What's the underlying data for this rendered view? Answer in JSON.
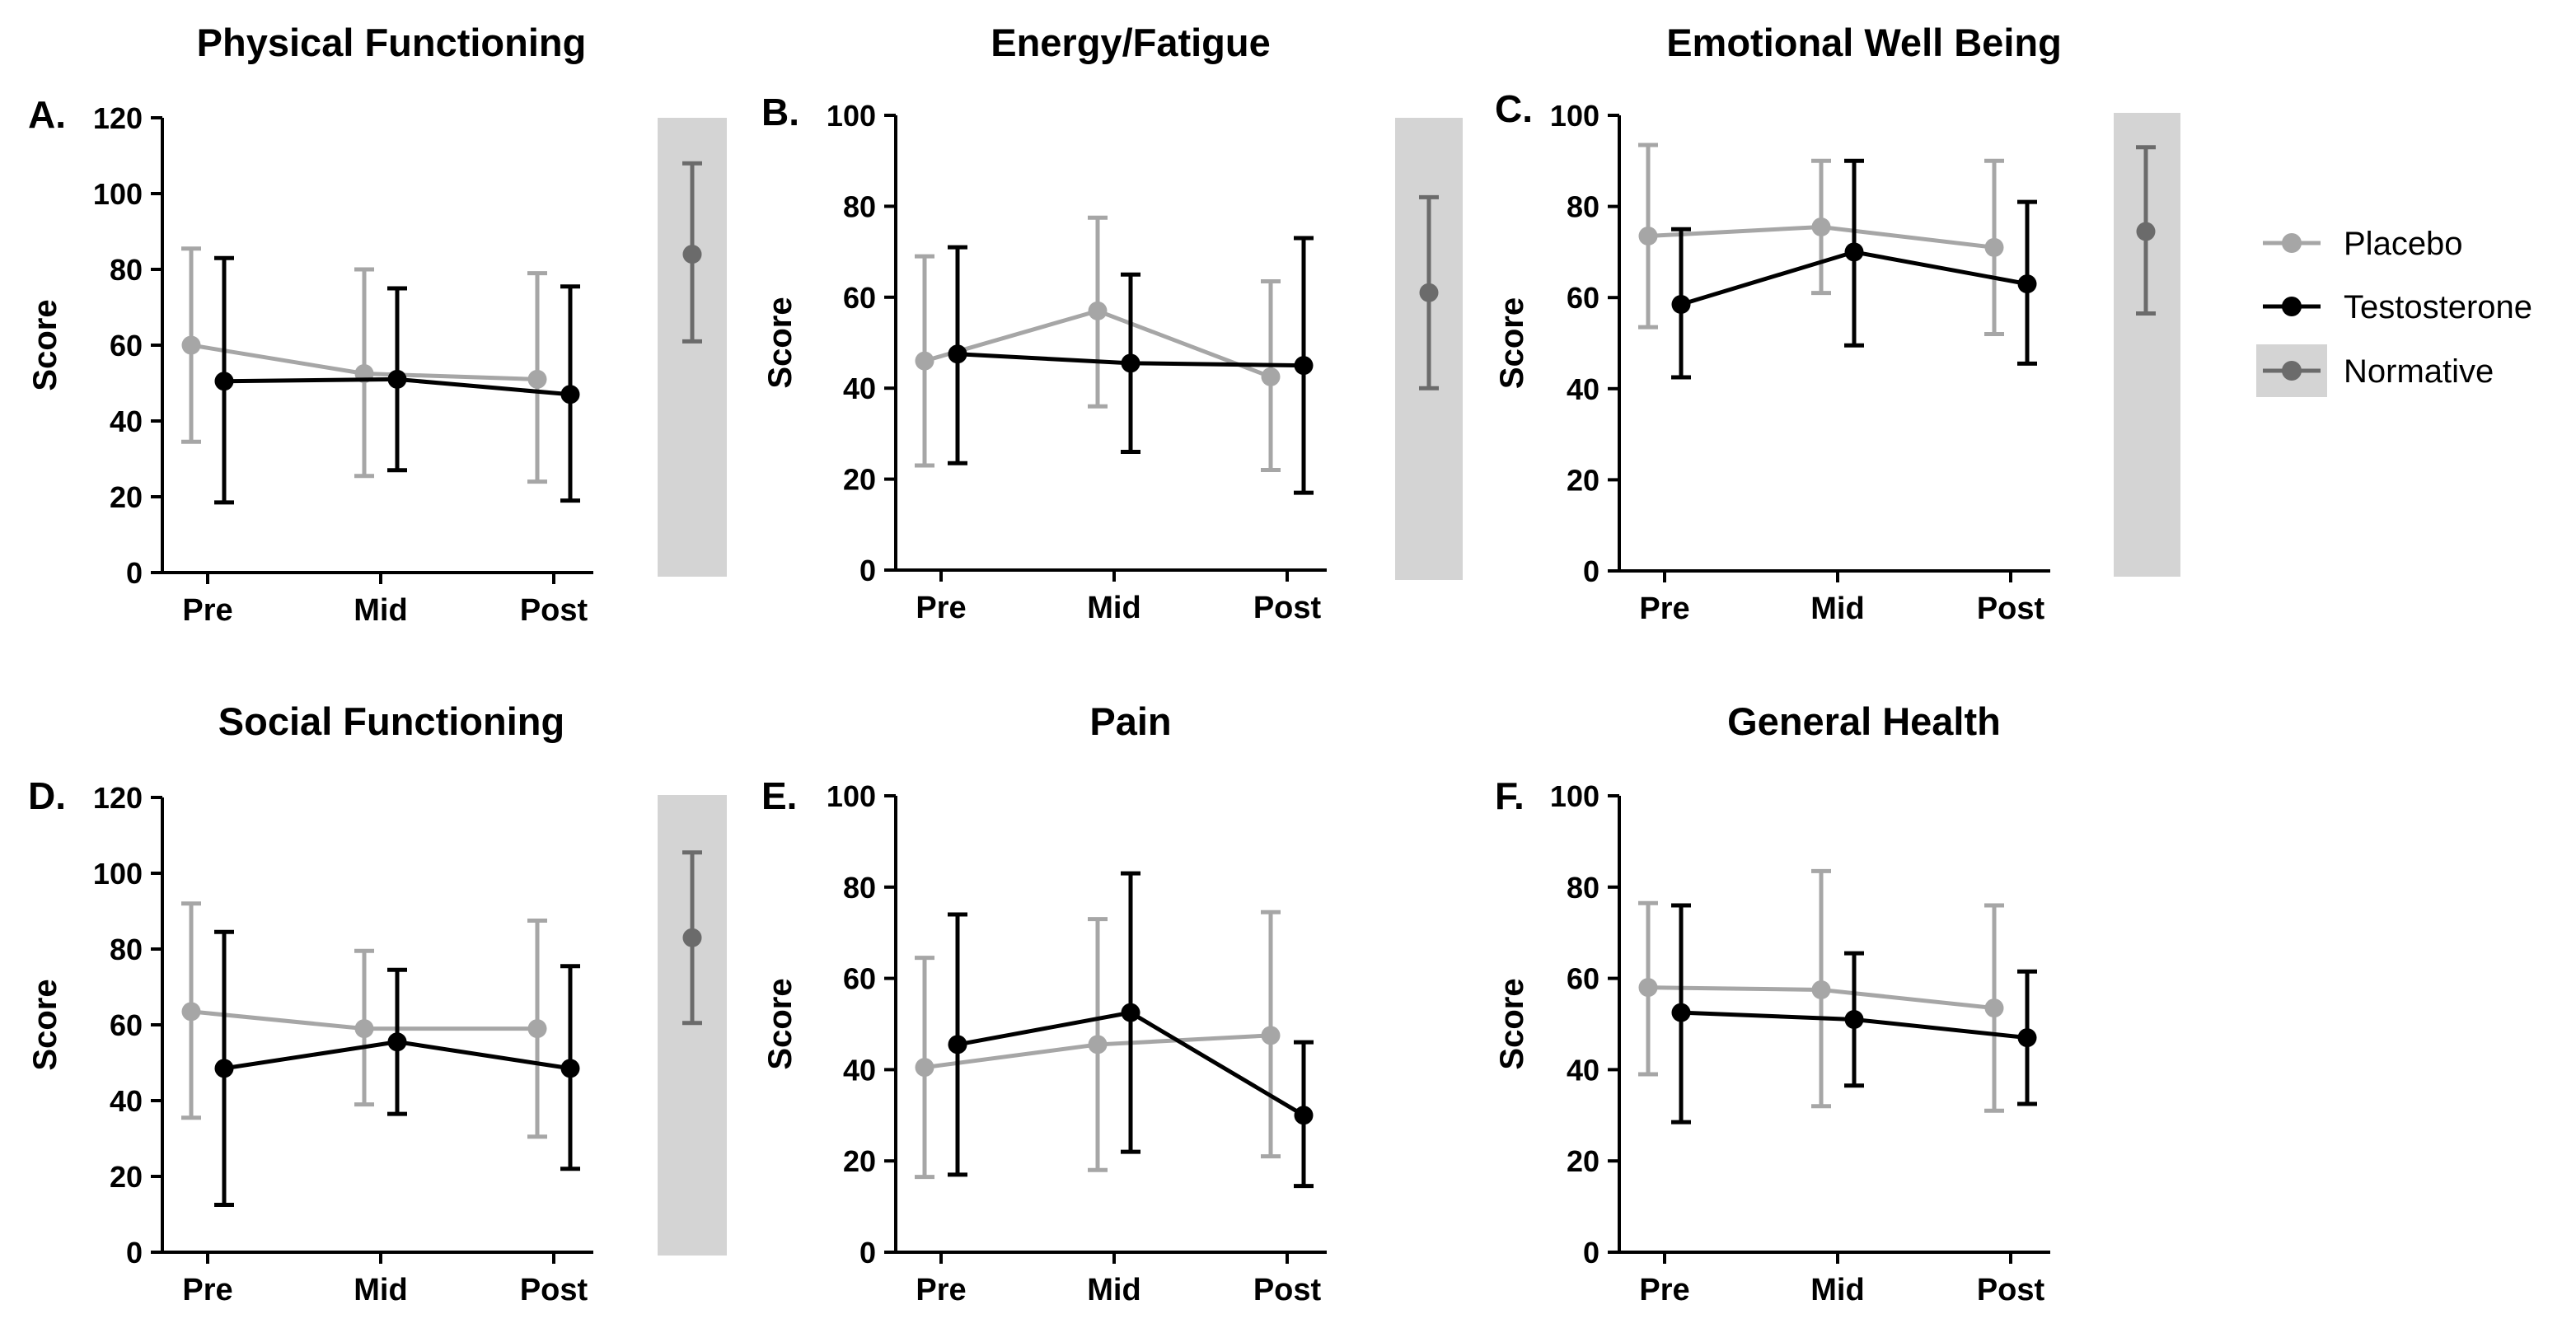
{
  "colors": {
    "placebo": "#a6a6a6",
    "testosterone": "#000000",
    "normative": "#6b6b6b",
    "normative_band": "#d4d4d4"
  },
  "legend": {
    "placement": "right",
    "entries": [
      {
        "key": "placebo",
        "label": "Placebo"
      },
      {
        "key": "testosterone",
        "label": "Testosterone"
      },
      {
        "key": "normative",
        "label": "Normative"
      }
    ]
  },
  "chart_data": [
    {
      "id": "A",
      "panel_label": "A.",
      "type": "line",
      "title": "Physical Functioning",
      "ylabel": "Score",
      "ylim": [
        0,
        120
      ],
      "yticks": [
        0,
        20,
        40,
        60,
        80,
        100,
        120
      ],
      "categories": [
        "Pre",
        "Mid",
        "Post"
      ],
      "series": [
        {
          "name": "Placebo",
          "key": "placebo",
          "values": [
            60,
            52.5,
            51
          ],
          "lower": [
            34.5,
            25.5,
            24
          ],
          "upper": [
            85.5,
            80,
            79
          ]
        },
        {
          "name": "Testosterone",
          "key": "testosterone",
          "values": [
            50.5,
            51,
            47
          ],
          "lower": [
            18.5,
            27,
            19
          ],
          "upper": [
            83,
            75,
            75.5
          ]
        }
      ],
      "normative": {
        "name": "Normative",
        "value": 84,
        "lower": 61,
        "upper": 108
      }
    },
    {
      "id": "B",
      "panel_label": "B.",
      "type": "line",
      "title": "Energy/Fatigue",
      "ylabel": "Score",
      "ylim": [
        0,
        100
      ],
      "yticks": [
        0,
        20,
        40,
        60,
        80,
        100
      ],
      "categories": [
        "Pre",
        "Mid",
        "Post"
      ],
      "series": [
        {
          "name": "Placebo",
          "key": "placebo",
          "values": [
            46,
            57,
            42.5
          ],
          "lower": [
            23,
            36,
            22
          ],
          "upper": [
            69,
            77.5,
            63.5
          ]
        },
        {
          "name": "Testosterone",
          "key": "testosterone",
          "values": [
            47.5,
            45.5,
            45
          ],
          "lower": [
            23.5,
            26,
            17
          ],
          "upper": [
            71,
            65,
            73
          ]
        }
      ],
      "normative": {
        "name": "Normative",
        "value": 61,
        "lower": 40,
        "upper": 82
      }
    },
    {
      "id": "C",
      "panel_label": "C.",
      "type": "line",
      "title": "Emotional Well Being",
      "ylabel": "Score",
      "ylim": [
        0,
        100
      ],
      "yticks": [
        0,
        20,
        40,
        60,
        80,
        100
      ],
      "categories": [
        "Pre",
        "Mid",
        "Post"
      ],
      "series": [
        {
          "name": "Placebo",
          "key": "placebo",
          "values": [
            73.5,
            75.5,
            71
          ],
          "lower": [
            53.5,
            61,
            52
          ],
          "upper": [
            93.5,
            90,
            90
          ]
        },
        {
          "name": "Testosterone",
          "key": "testosterone",
          "values": [
            58.5,
            70,
            63
          ],
          "lower": [
            42.5,
            49.5,
            45.5
          ],
          "upper": [
            75,
            90,
            81
          ]
        }
      ],
      "normative": {
        "name": "Normative",
        "value": 74.5,
        "lower": 56.5,
        "upper": 93
      }
    },
    {
      "id": "D",
      "panel_label": "D.",
      "type": "line",
      "title": "Social Functioning",
      "ylabel": "Score",
      "ylim": [
        0,
        120
      ],
      "yticks": [
        0,
        20,
        40,
        60,
        80,
        100,
        120
      ],
      "categories": [
        "Pre",
        "Mid",
        "Post"
      ],
      "series": [
        {
          "name": "Placebo",
          "key": "placebo",
          "values": [
            63.5,
            59,
            59
          ],
          "lower": [
            35.5,
            39,
            30.5
          ],
          "upper": [
            92,
            79.5,
            87.5
          ]
        },
        {
          "name": "Testosterone",
          "key": "testosterone",
          "values": [
            48.5,
            55.5,
            48.5
          ],
          "lower": [
            12.5,
            36.5,
            22
          ],
          "upper": [
            84.5,
            74.5,
            75.5
          ]
        }
      ],
      "normative": {
        "name": "Normative",
        "value": 83,
        "lower": 60.5,
        "upper": 105.5
      }
    },
    {
      "id": "E",
      "panel_label": "E.",
      "type": "line",
      "title": "Pain",
      "ylabel": "Score",
      "ylim": [
        0,
        100
      ],
      "yticks": [
        0,
        20,
        40,
        60,
        80,
        100
      ],
      "categories": [
        "Pre",
        "Mid",
        "Post"
      ],
      "series": [
        {
          "name": "Placebo",
          "key": "placebo",
          "values": [
            40.5,
            45.5,
            47.5
          ],
          "lower": [
            16.5,
            18,
            21
          ],
          "upper": [
            64.5,
            73,
            74.5
          ]
        },
        {
          "name": "Testosterone",
          "key": "testosterone",
          "values": [
            45.5,
            52.5,
            30
          ],
          "lower": [
            17,
            22,
            14.5
          ],
          "upper": [
            74,
            83,
            46
          ]
        }
      ]
    },
    {
      "id": "F",
      "panel_label": "F.",
      "type": "line",
      "title": "General Health",
      "ylabel": "Score",
      "ylim": [
        0,
        100
      ],
      "yticks": [
        0,
        20,
        40,
        60,
        80,
        100
      ],
      "categories": [
        "Pre",
        "Mid",
        "Post"
      ],
      "series": [
        {
          "name": "Placebo",
          "key": "placebo",
          "values": [
            58,
            57.5,
            53.5
          ],
          "lower": [
            39,
            32,
            31
          ],
          "upper": [
            76.5,
            83.5,
            76
          ]
        },
        {
          "name": "Testosterone",
          "key": "testosterone",
          "values": [
            52.5,
            51,
            47
          ],
          "lower": [
            28.5,
            36.5,
            32.5
          ],
          "upper": [
            76,
            65.5,
            61.5
          ]
        }
      ]
    }
  ]
}
